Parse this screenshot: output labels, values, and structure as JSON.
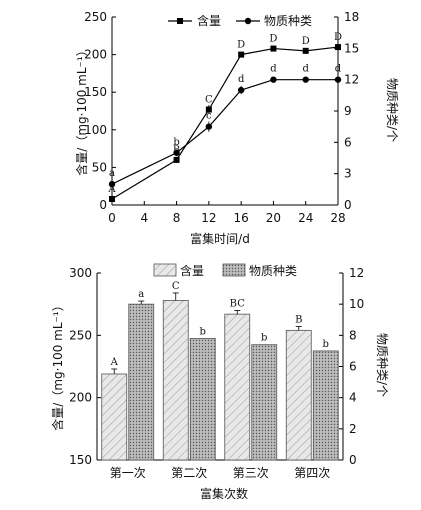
{
  "chart_data": [
    {
      "type": "line",
      "xlabel": "富集时间/d",
      "ylabel_left": "含量/（mg·100 mL⁻¹）",
      "ylabel_right": "物质种类/个",
      "x": [
        0,
        8,
        12,
        16,
        20,
        24,
        28
      ],
      "xticks": [
        "0",
        "4",
        "8",
        "12",
        "16",
        "20",
        "24",
        "28"
      ],
      "xlim": [
        0,
        28
      ],
      "ylim_left": [
        0,
        250
      ],
      "yticks_left": [
        "0",
        "50",
        "100",
        "150",
        "200",
        "250"
      ],
      "ylim_right": [
        0,
        18
      ],
      "yticks_right": [
        "0",
        "3",
        "6",
        "9",
        "12",
        "15",
        "18"
      ],
      "legend_position": "top",
      "series": [
        {
          "name": "含量",
          "axis": "left",
          "marker": "square",
          "values": [
            8,
            60,
            127,
            200,
            208,
            205,
            210
          ],
          "error": [
            2,
            4,
            6,
            3,
            3,
            2,
            2
          ],
          "labels": [
            "A",
            "B",
            "C",
            "D",
            "D",
            "D",
            "D"
          ]
        },
        {
          "name": "物质种类",
          "axis": "right",
          "marker": "circle",
          "values": [
            2,
            5,
            7.5,
            11,
            12,
            12,
            12
          ],
          "error": [
            0.2,
            0.3,
            0.5,
            0.4,
            0.2,
            0.2,
            0.2
          ],
          "labels": [
            "a",
            "b",
            "c",
            "d",
            "d",
            "d",
            "d"
          ]
        }
      ]
    },
    {
      "type": "bar",
      "xlabel": "富集次数",
      "ylabel_left": "含量/（mg·100 mL⁻¹）",
      "ylabel_right": "物质种类/个",
      "categories": [
        "第一次",
        "第二次",
        "第三次",
        "第四次"
      ],
      "ylim_left": [
        150,
        300
      ],
      "yticks_left": [
        "150",
        "200",
        "250",
        "300"
      ],
      "ylim_right": [
        0,
        12
      ],
      "yticks_right": [
        "0",
        "2",
        "4",
        "6",
        "8",
        "10",
        "12"
      ],
      "legend_position": "top",
      "series": [
        {
          "name": "含量",
          "axis": "left",
          "pattern": "diagonal-hatch",
          "values": [
            219,
            278,
            267,
            254
          ],
          "error": [
            4,
            6,
            3,
            3
          ],
          "labels": [
            "A",
            "C",
            "BC",
            "B"
          ]
        },
        {
          "name": "物质种类",
          "axis": "right",
          "pattern": "dots",
          "values": [
            10,
            7.8,
            7.4,
            7
          ],
          "error": [
            0.2,
            0,
            0,
            0
          ],
          "labels": [
            "a",
            "b",
            "b",
            "b"
          ]
        }
      ]
    }
  ]
}
